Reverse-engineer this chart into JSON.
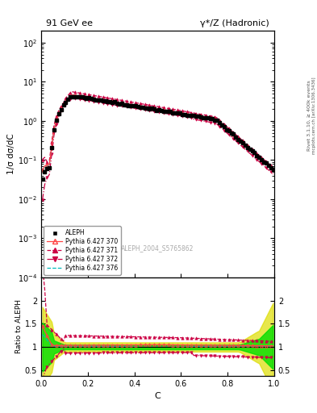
{
  "title_left": "91 GeV ee",
  "title_right": "γ*/Z (Hadronic)",
  "ylabel_main": "1/σ dσ/dC",
  "ylabel_ratio": "Ratio to ALEPH",
  "xlabel": "C",
  "right_label": "Rivet 3.1.10, ≥ 400k events",
  "right_label2": "mcplots.cern.ch [arXiv:1306.3436]",
  "watermark": "ALEPH_2004_S5765862",
  "ylim_main": [
    0.0001,
    200
  ],
  "ylim_ratio": [
    0.38,
    2.5
  ],
  "xlim": [
    0.0,
    1.0
  ],
  "colors": {
    "aleph": "#000000",
    "py370": "#ff4444",
    "py371": "#cc0044",
    "py372": "#cc0044",
    "py376": "#00bbbb"
  },
  "band_color_green": "#00dd00",
  "band_color_yellow": "#dddd00",
  "legend_entries": [
    "ALEPH",
    "Pythia 6.427 370",
    "Pythia 6.427 371",
    "Pythia 6.427 372",
    "Pythia 6.427 376"
  ]
}
